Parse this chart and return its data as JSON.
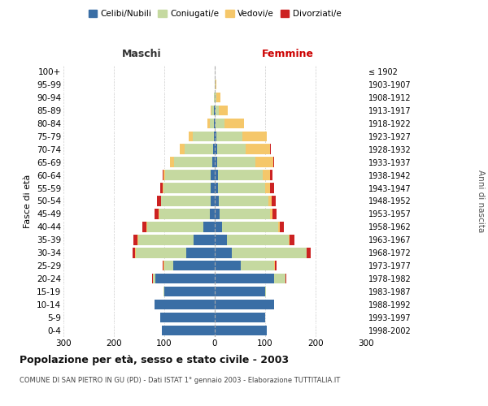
{
  "age_groups": [
    "100+",
    "95-99",
    "90-94",
    "85-89",
    "80-84",
    "75-79",
    "70-74",
    "65-69",
    "60-64",
    "55-59",
    "50-54",
    "45-49",
    "40-44",
    "35-39",
    "30-34",
    "25-29",
    "20-24",
    "15-19",
    "10-14",
    "5-9",
    "0-4"
  ],
  "birth_years": [
    "≤ 1902",
    "1903-1907",
    "1908-1912",
    "1913-1917",
    "1918-1922",
    "1923-1927",
    "1928-1932",
    "1933-1937",
    "1938-1942",
    "1943-1947",
    "1948-1952",
    "1953-1957",
    "1958-1962",
    "1963-1967",
    "1968-1972",
    "1973-1977",
    "1978-1982",
    "1983-1987",
    "1988-1992",
    "1993-1997",
    "1998-2002"
  ],
  "maschi": {
    "celibi": [
      0,
      0,
      0,
      1,
      1,
      2,
      4,
      5,
      8,
      8,
      8,
      10,
      22,
      42,
      57,
      82,
      118,
      100,
      120,
      108,
      105
    ],
    "coniugati": [
      0,
      0,
      2,
      5,
      9,
      42,
      55,
      75,
      90,
      93,
      98,
      100,
      112,
      110,
      100,
      18,
      4,
      1,
      0,
      0,
      0
    ],
    "vedovi": [
      0,
      0,
      0,
      2,
      5,
      8,
      10,
      8,
      3,
      2,
      1,
      1,
      1,
      1,
      1,
      1,
      1,
      0,
      0,
      0,
      0
    ],
    "divorziati": [
      0,
      0,
      0,
      0,
      0,
      0,
      1,
      1,
      3,
      5,
      8,
      8,
      9,
      8,
      5,
      2,
      1,
      0,
      0,
      0,
      0
    ]
  },
  "femmine": {
    "nubili": [
      0,
      0,
      0,
      1,
      2,
      3,
      5,
      5,
      7,
      7,
      8,
      10,
      14,
      24,
      34,
      52,
      118,
      100,
      118,
      100,
      104
    ],
    "coniugate": [
      0,
      1,
      4,
      7,
      18,
      52,
      57,
      75,
      88,
      93,
      98,
      100,
      112,
      122,
      148,
      66,
      22,
      2,
      0,
      0,
      0
    ],
    "vedove": [
      0,
      2,
      8,
      18,
      38,
      48,
      48,
      36,
      14,
      10,
      7,
      5,
      3,
      2,
      1,
      1,
      1,
      0,
      0,
      0,
      0
    ],
    "divorziate": [
      0,
      0,
      0,
      0,
      0,
      0,
      1,
      2,
      5,
      8,
      8,
      8,
      8,
      10,
      8,
      3,
      1,
      0,
      0,
      0,
      0
    ]
  },
  "colors": {
    "celibi": "#3A6EA5",
    "coniugati": "#C5D9A0",
    "vedovi": "#F5C76A",
    "divorziati": "#CC2222"
  },
  "xlim": 300,
  "title": "Popolazione per età, sesso e stato civile - 2003",
  "subtitle": "COMUNE DI SAN PIETRO IN GU (PD) - Dati ISTAT 1° gennaio 2003 - Elaborazione TUTTITALIA.IT",
  "ylabel": "Fasce di età",
  "ylabel_right": "Anni di nascita",
  "xlabel_maschi": "Maschi",
  "xlabel_femmine": "Femmine",
  "legend_labels": [
    "Celibi/Nubili",
    "Coniugati/e",
    "Vedovi/e",
    "Divorziati/e"
  ],
  "bg_color": "#FFFFFF",
  "grid_color": "#CCCCCC"
}
